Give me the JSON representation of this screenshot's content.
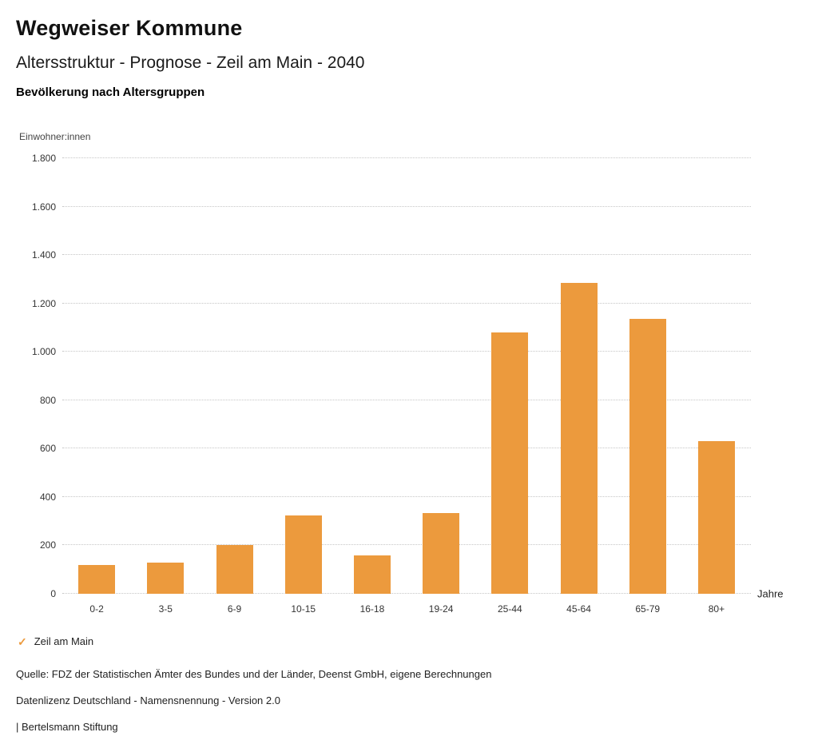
{
  "header": {
    "title": "Wegweiser Kommune",
    "subtitle": "Altersstruktur - Prognose - Zeil am Main - 2040",
    "chart_heading": "Bevölkerung nach Altersgruppen"
  },
  "chart_data": {
    "type": "bar",
    "title": "Bevölkerung nach Altersgruppen",
    "ylabel": "Einwohner:innen",
    "xlabel": "Jahre",
    "categories": [
      "0-2",
      "3-5",
      "6-9",
      "10-15",
      "16-18",
      "19-24",
      "25-44",
      "45-64",
      "65-79",
      "80+"
    ],
    "series": [
      {
        "name": "Zeil am Main",
        "values": [
          120,
          130,
          200,
          325,
          160,
          335,
          1080,
          1285,
          1135,
          630
        ]
      }
    ],
    "ylim": [
      0,
      1800
    ],
    "ytick_step": 200,
    "ytick_labels": [
      "0",
      "200",
      "400",
      "600",
      "800",
      "1.000",
      "1.200",
      "1.400",
      "1.600",
      "1.800"
    ],
    "grid": true,
    "legend_position": "bottom",
    "bar_color": "#EC9A3D"
  },
  "legend": {
    "check_icon": "✓",
    "label": "Zeil am Main",
    "accent_color": "#EC9A3D"
  },
  "footer": {
    "source": "Quelle: FDZ der Statistischen Ämter des Bundes und der Länder, Deenst GmbH, eigene Berechnungen",
    "license": "Datenlizenz Deutschland - Namensnennung - Version 2.0",
    "attribution": "| Bertelsmann Stiftung"
  }
}
